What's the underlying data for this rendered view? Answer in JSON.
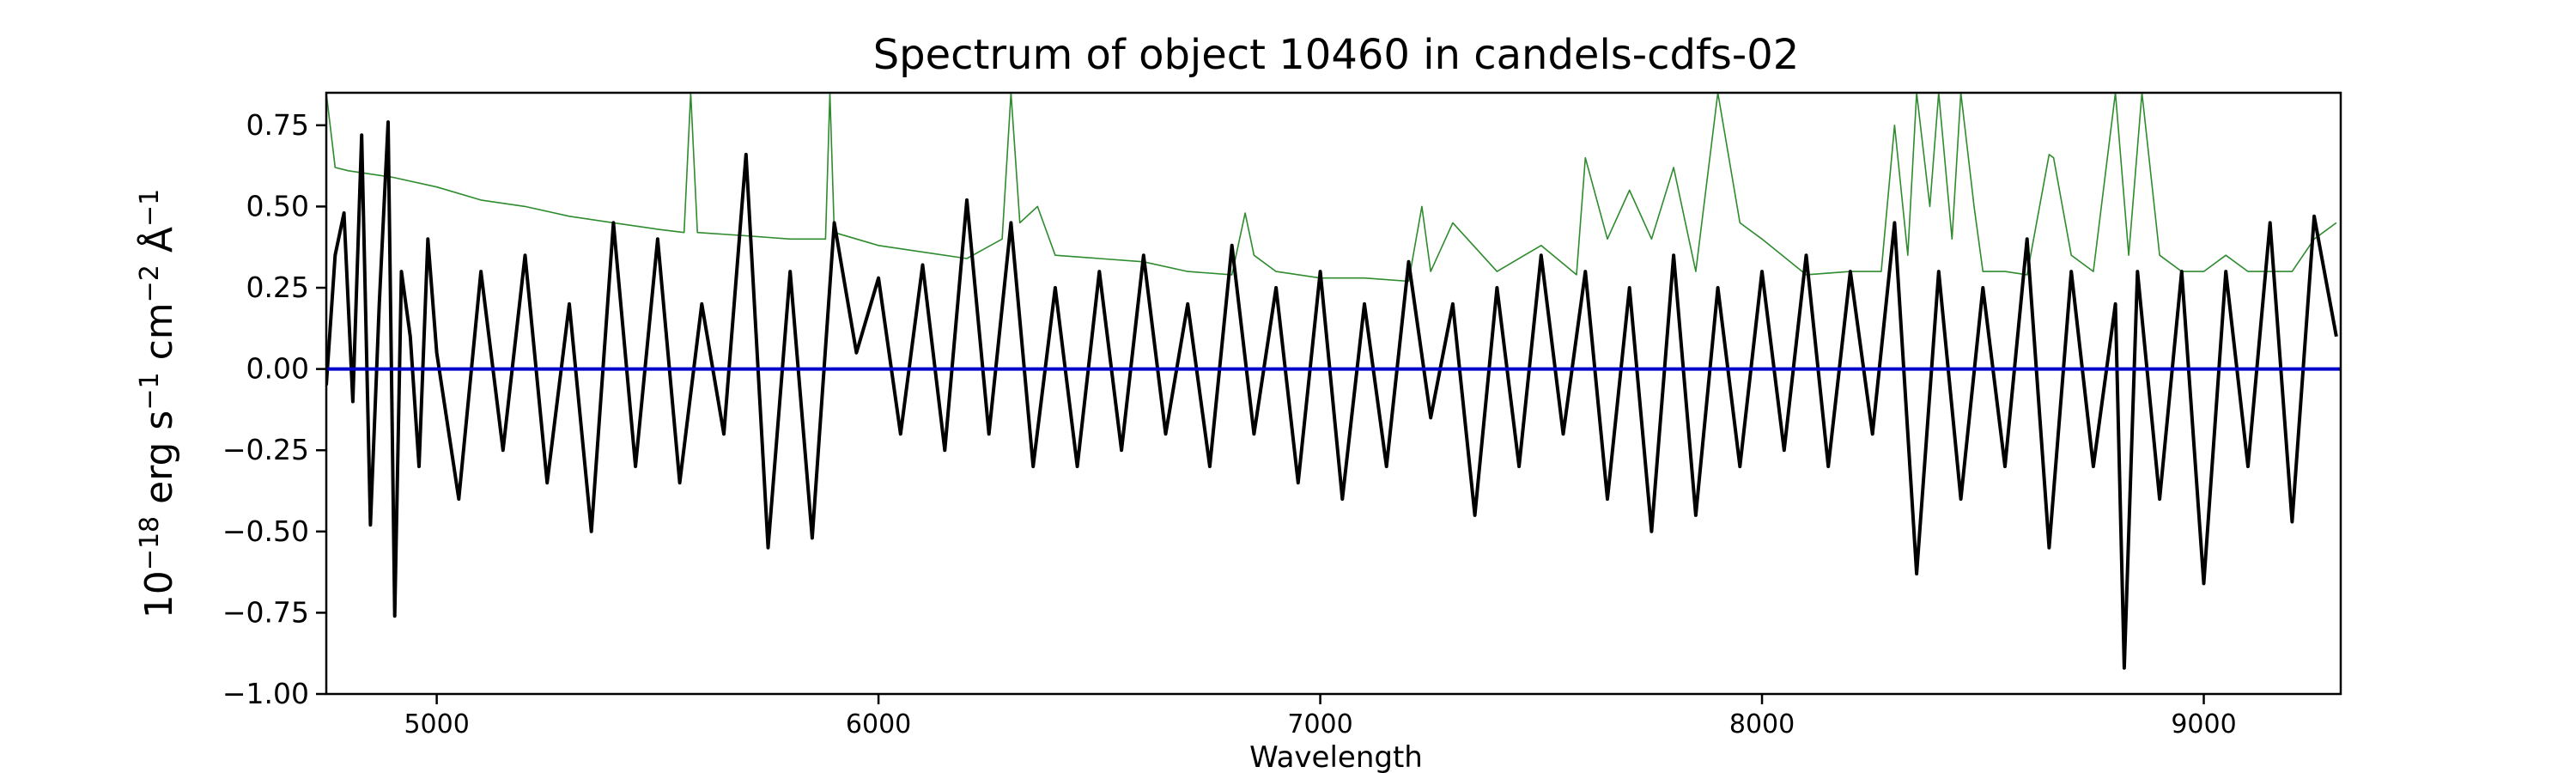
{
  "chart_data": {
    "type": "line",
    "title": "Spectrum of object 10460 in candels-cdfs-02",
    "xlabel": "Wavelength",
    "ylabel_html_parts": [
      "10",
      "−18",
      " erg s",
      "−1",
      " cm",
      "−2",
      " Å",
      "−1"
    ],
    "xlim": [
      4750,
      9310
    ],
    "ylim": [
      -1.0,
      0.85
    ],
    "x_ticks": [
      5000,
      6000,
      7000,
      8000,
      9000
    ],
    "x_tick_labels": [
      "5000",
      "6000",
      "7000",
      "8000",
      "9000"
    ],
    "y_ticks": [
      -1.0,
      -0.75,
      -0.5,
      -0.25,
      0.0,
      0.25,
      0.5,
      0.75
    ],
    "y_tick_labels": [
      "−1.00",
      "−0.75",
      "−0.50",
      "−0.25",
      "0.00",
      "0.25",
      "0.50",
      "0.75"
    ],
    "grid": false,
    "series": [
      {
        "role": "observed-flux",
        "color": "#000000",
        "x": [
          4750,
          4770,
          4790,
          4810,
          4830,
          4850,
          4870,
          4890,
          4905,
          4920,
          4940,
          4960,
          4980,
          5000,
          5050,
          5100,
          5150,
          5200,
          5250,
          5300,
          5350,
          5400,
          5450,
          5500,
          5550,
          5600,
          5650,
          5700,
          5750,
          5800,
          5850,
          5900,
          5950,
          6000,
          6050,
          6100,
          6150,
          6200,
          6250,
          6300,
          6350,
          6400,
          6450,
          6500,
          6550,
          6600,
          6650,
          6700,
          6750,
          6800,
          6850,
          6900,
          6950,
          7000,
          7050,
          7100,
          7150,
          7200,
          7250,
          7300,
          7350,
          7400,
          7450,
          7500,
          7550,
          7600,
          7650,
          7700,
          7750,
          7800,
          7850,
          7900,
          7950,
          8000,
          8050,
          8100,
          8150,
          8200,
          8250,
          8300,
          8350,
          8400,
          8450,
          8500,
          8550,
          8600,
          8650,
          8700,
          8750,
          8800,
          8820,
          8850,
          8900,
          8950,
          9000,
          9050,
          9100,
          9150,
          9200,
          9250,
          9300
        ],
        "y": [
          -0.05,
          0.35,
          0.48,
          -0.1,
          0.72,
          -0.48,
          0.2,
          0.76,
          -0.76,
          0.3,
          0.1,
          -0.3,
          0.4,
          0.05,
          -0.4,
          0.3,
          -0.25,
          0.35,
          -0.35,
          0.2,
          -0.5,
          0.45,
          -0.3,
          0.4,
          -0.35,
          0.2,
          -0.2,
          0.66,
          -0.55,
          0.3,
          -0.52,
          0.45,
          0.05,
          0.28,
          -0.2,
          0.32,
          -0.25,
          0.52,
          -0.2,
          0.45,
          -0.3,
          0.25,
          -0.3,
          0.3,
          -0.25,
          0.35,
          -0.2,
          0.2,
          -0.3,
          0.38,
          -0.2,
          0.25,
          -0.35,
          0.3,
          -0.4,
          0.2,
          -0.3,
          0.33,
          -0.15,
          0.2,
          -0.45,
          0.25,
          -0.3,
          0.35,
          -0.2,
          0.3,
          -0.4,
          0.25,
          -0.5,
          0.35,
          -0.45,
          0.25,
          -0.3,
          0.3,
          -0.25,
          0.35,
          -0.3,
          0.3,
          -0.2,
          0.45,
          -0.63,
          0.3,
          -0.4,
          0.25,
          -0.3,
          0.4,
          -0.55,
          0.3,
          -0.3,
          0.2,
          -0.92,
          0.3,
          -0.4,
          0.3,
          -0.66,
          0.3,
          -0.3,
          0.45,
          -0.47,
          0.47,
          0.1
        ]
      },
      {
        "role": "model-continuum",
        "color": "#2e8b2e",
        "x": [
          4750,
          4770,
          4800,
          4900,
          5000,
          5100,
          5200,
          5300,
          5400,
          5500,
          5560,
          5575,
          5590,
          5700,
          5800,
          5880,
          5890,
          5900,
          6000,
          6100,
          6200,
          6280,
          6300,
          6320,
          6360,
          6400,
          6500,
          6600,
          6700,
          6800,
          6830,
          6850,
          6900,
          7000,
          7100,
          7200,
          7230,
          7250,
          7300,
          7400,
          7500,
          7580,
          7600,
          7650,
          7700,
          7750,
          7800,
          7850,
          7900,
          7950,
          8000,
          8100,
          8200,
          8270,
          8300,
          8330,
          8350,
          8380,
          8400,
          8430,
          8450,
          8480,
          8500,
          8550,
          8600,
          8650,
          8660,
          8700,
          8750,
          8800,
          8830,
          8860,
          8900,
          8950,
          9000,
          9050,
          9100,
          9150,
          9200,
          9250,
          9300
        ],
        "y": [
          0.85,
          0.62,
          0.61,
          0.59,
          0.56,
          0.52,
          0.5,
          0.47,
          0.45,
          0.43,
          0.42,
          0.85,
          0.42,
          0.41,
          0.4,
          0.4,
          0.85,
          0.42,
          0.38,
          0.36,
          0.34,
          0.4,
          0.85,
          0.45,
          0.5,
          0.35,
          0.34,
          0.33,
          0.3,
          0.29,
          0.48,
          0.35,
          0.3,
          0.28,
          0.28,
          0.27,
          0.5,
          0.3,
          0.45,
          0.3,
          0.38,
          0.29,
          0.65,
          0.4,
          0.55,
          0.4,
          0.62,
          0.3,
          0.85,
          0.45,
          0.4,
          0.29,
          0.3,
          0.3,
          0.75,
          0.35,
          0.85,
          0.5,
          0.85,
          0.4,
          0.85,
          0.5,
          0.3,
          0.3,
          0.29,
          0.66,
          0.65,
          0.35,
          0.3,
          0.85,
          0.35,
          0.85,
          0.35,
          0.3,
          0.3,
          0.35,
          0.3,
          0.3,
          0.3,
          0.4,
          0.45
        ]
      },
      {
        "role": "zero-line",
        "color": "#0000cc",
        "x": [
          4750,
          9310
        ],
        "y": [
          0.0,
          0.0
        ]
      }
    ]
  }
}
